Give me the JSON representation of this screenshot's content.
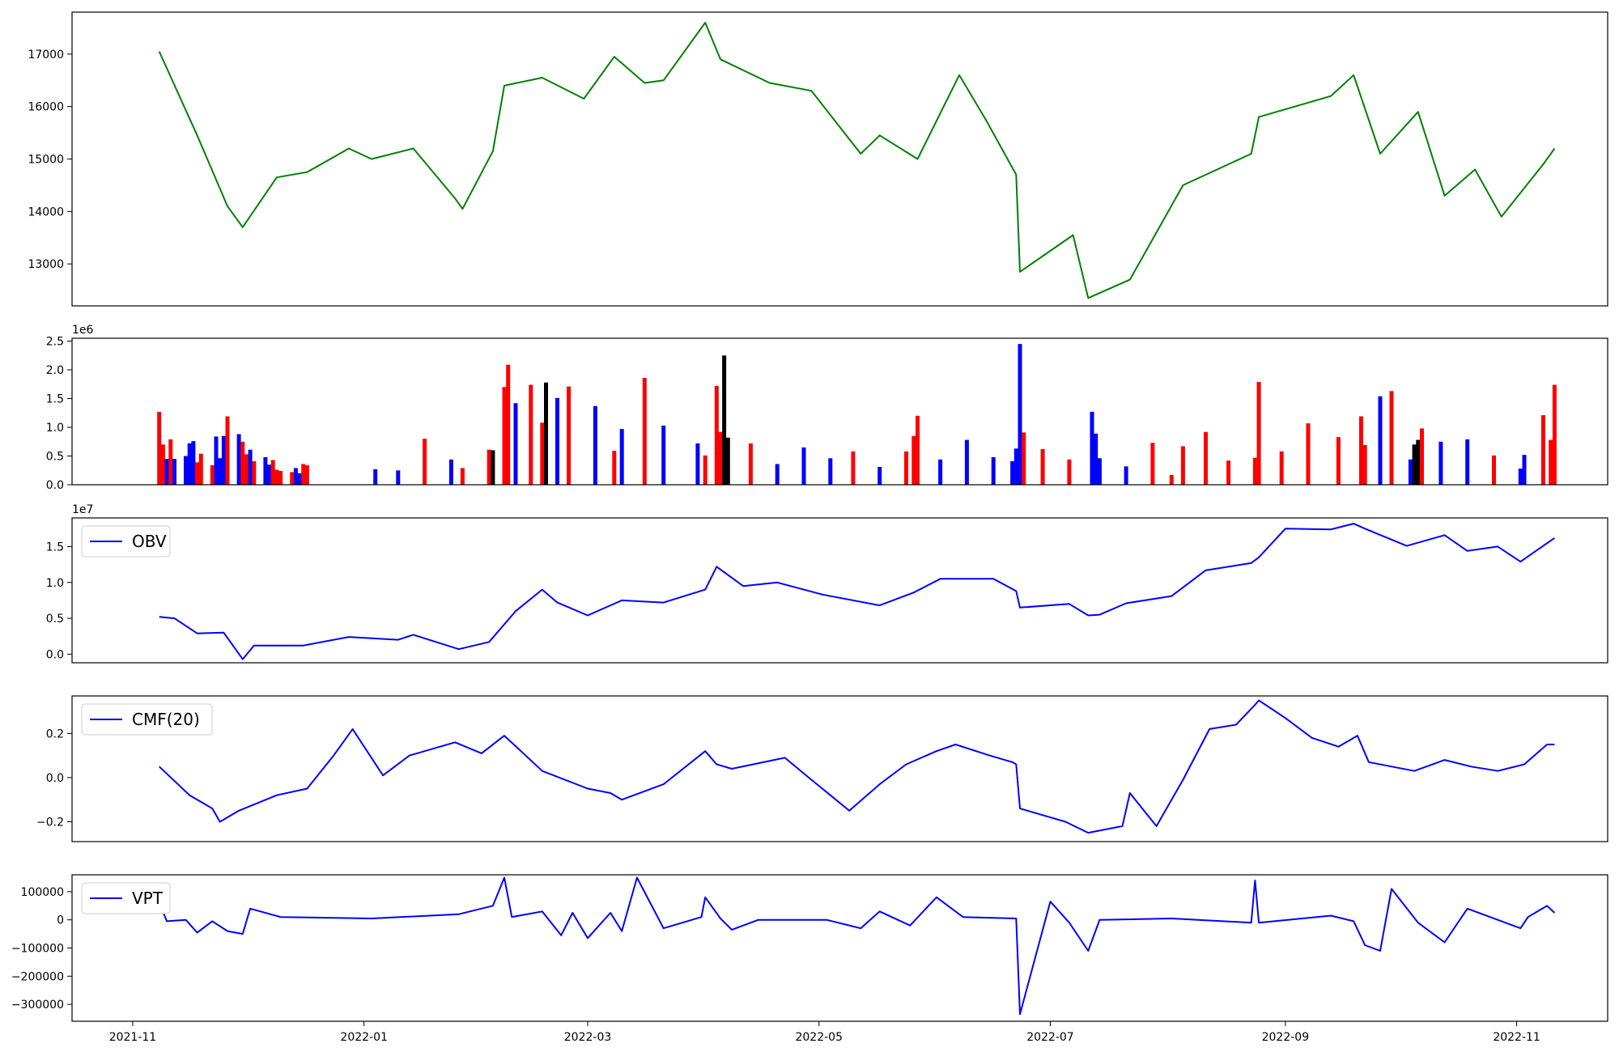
{
  "chart_data": [
    {
      "type": "line",
      "title": "",
      "ylabel": "",
      "color": "#008000",
      "ylim": [
        12200,
        17800
      ],
      "yticks": [
        13000,
        14000,
        15000,
        16000,
        17000
      ],
      "ytick_labels": [
        "13000",
        "14000",
        "15000",
        "16000",
        "17000"
      ],
      "show_xticklabels": false,
      "x": [
        "2021-11-08",
        "2021-11-18",
        "2021-11-26",
        "2021-11-30",
        "2021-12-09",
        "2021-12-17",
        "2021-12-28",
        "2022-01-03",
        "2022-01-14",
        "2022-01-25",
        "2022-01-27",
        "2022-02-04",
        "2022-02-07",
        "2022-02-17",
        "2022-02-28",
        "2022-03-08",
        "2022-03-16",
        "2022-03-21",
        "2022-04-01",
        "2022-04-05",
        "2022-04-18",
        "2022-04-29",
        "2022-05-12",
        "2022-05-17",
        "2022-05-27",
        "2022-06-07",
        "2022-06-14",
        "2022-06-22",
        "2022-06-23",
        "2022-07-07",
        "2022-07-11",
        "2022-07-22",
        "2022-08-05",
        "2022-08-23",
        "2022-08-25",
        "2022-09-13",
        "2022-09-19",
        "2022-09-26",
        "2022-10-06",
        "2022-10-13",
        "2022-10-21",
        "2022-10-28",
        "2022-11-08",
        "2022-11-11"
      ],
      "values": [
        17050,
        15450,
        14100,
        13700,
        14650,
        14750,
        15200,
        15000,
        15200,
        14250,
        14050,
        15150,
        16400,
        16550,
        16150,
        16950,
        16450,
        16500,
        17600,
        16900,
        16450,
        16300,
        15100,
        15450,
        15000,
        16600,
        15750,
        14700,
        12850,
        13550,
        12350,
        12700,
        14500,
        15100,
        15800,
        16200,
        16600,
        15100,
        15900,
        14300,
        14800,
        13900,
        14900,
        15200
      ]
    },
    {
      "type": "bar",
      "title": "",
      "exponent_label": "1e6",
      "ylim": [
        0,
        2.55
      ],
      "yticks": [
        0.0,
        0.5,
        1.0,
        1.5,
        2.0,
        2.5
      ],
      "ytick_labels": [
        "0.0",
        "0.5",
        "1.0",
        "1.5",
        "2.0",
        "2.5"
      ],
      "show_xticklabels": false,
      "colors": {
        "up": "#0000ff",
        "down": "#ff0000",
        "flat": "#000000"
      },
      "x": [
        "2021-11-08",
        "2021-11-09",
        "2021-11-10",
        "2021-11-11",
        "2021-11-12",
        "2021-11-15",
        "2021-11-16",
        "2021-11-17",
        "2021-11-18",
        "2021-11-19",
        "2021-11-22",
        "2021-11-23",
        "2021-11-24",
        "2021-11-25",
        "2021-11-26",
        "2021-11-29",
        "2021-11-30",
        "2021-12-01",
        "2021-12-02",
        "2021-12-03",
        "2021-12-06",
        "2021-12-07",
        "2021-12-08",
        "2021-12-09",
        "2021-12-10",
        "2021-12-13",
        "2021-12-14",
        "2021-12-15",
        "2021-12-16",
        "2021-12-17",
        "2022-01-04",
        "2022-01-10",
        "2022-01-17",
        "2022-01-24",
        "2022-01-27",
        "2022-02-03",
        "2022-02-04",
        "2022-02-07",
        "2022-02-08",
        "2022-02-10",
        "2022-02-14",
        "2022-02-17",
        "2022-02-18",
        "2022-02-21",
        "2022-02-24",
        "2022-03-03",
        "2022-03-08",
        "2022-03-10",
        "2022-03-16",
        "2022-03-21",
        "2022-03-30",
        "2022-04-01",
        "2022-04-04",
        "2022-04-05",
        "2022-04-06",
        "2022-04-07",
        "2022-04-13",
        "2022-04-20",
        "2022-04-27",
        "2022-05-04",
        "2022-05-10",
        "2022-05-17",
        "2022-05-24",
        "2022-05-26",
        "2022-05-27",
        "2022-06-02",
        "2022-06-09",
        "2022-06-16",
        "2022-06-21",
        "2022-06-22",
        "2022-06-23",
        "2022-06-24",
        "2022-06-29",
        "2022-07-06",
        "2022-07-12",
        "2022-07-13",
        "2022-07-14",
        "2022-07-21",
        "2022-07-28",
        "2022-08-02",
        "2022-08-05",
        "2022-08-11",
        "2022-08-17",
        "2022-08-24",
        "2022-08-25",
        "2022-08-31",
        "2022-09-07",
        "2022-09-15",
        "2022-09-21",
        "2022-09-22",
        "2022-09-26",
        "2022-09-29",
        "2022-10-04",
        "2022-10-05",
        "2022-10-06",
        "2022-10-07",
        "2022-10-12",
        "2022-10-19",
        "2022-10-26",
        "2022-11-02",
        "2022-11-03",
        "2022-11-08",
        "2022-11-10",
        "2022-11-11"
      ],
      "values": [
        1.27,
        0.7,
        0.45,
        0.79,
        0.45,
        0.5,
        0.72,
        0.76,
        0.39,
        0.54,
        0.34,
        0.84,
        0.46,
        0.85,
        1.19,
        0.88,
        0.75,
        0.53,
        0.61,
        0.41,
        0.48,
        0.35,
        0.43,
        0.26,
        0.24,
        0.22,
        0.29,
        0.2,
        0.36,
        0.34,
        0.27,
        0.25,
        0.8,
        0.44,
        0.29,
        0.61,
        0.6,
        1.7,
        2.09,
        1.42,
        1.74,
        1.08,
        1.78,
        1.51,
        1.71,
        1.37,
        0.59,
        0.97,
        1.86,
        1.03,
        0.72,
        0.51,
        1.72,
        0.92,
        2.25,
        0.82,
        0.72,
        0.36,
        0.65,
        0.46,
        0.58,
        0.31,
        0.58,
        0.85,
        1.2,
        0.44,
        0.78,
        0.48,
        0.41,
        0.63,
        2.45,
        0.91,
        0.62,
        0.44,
        1.27,
        0.89,
        0.46,
        0.32,
        0.73,
        0.17,
        0.67,
        0.92,
        0.42,
        0.47,
        1.79,
        0.58,
        1.07,
        0.83,
        1.19,
        0.69,
        1.54,
        1.63,
        0.44,
        0.7,
        0.78,
        0.98,
        0.75,
        0.79,
        0.51,
        0.28,
        0.52,
        1.21,
        0.78,
        1.74
      ],
      "directions": [
        "down",
        "down",
        "up",
        "down",
        "up",
        "up",
        "up",
        "up",
        "down",
        "down",
        "down",
        "up",
        "up",
        "up",
        "down",
        "up",
        "down",
        "down",
        "up",
        "down",
        "up",
        "up",
        "down",
        "down",
        "down",
        "down",
        "up",
        "up",
        "down",
        "down",
        "up",
        "up",
        "down",
        "up",
        "down",
        "down",
        "flat",
        "down",
        "down",
        "up",
        "down",
        "down",
        "flat",
        "up",
        "down",
        "up",
        "down",
        "up",
        "down",
        "up",
        "up",
        "down",
        "down",
        "down",
        "flat",
        "flat",
        "down",
        "up",
        "up",
        "up",
        "down",
        "up",
        "down",
        "down",
        "down",
        "up",
        "up",
        "up",
        "up",
        "up",
        "up",
        "down",
        "down",
        "down",
        "up",
        "up",
        "up",
        "up",
        "down",
        "down",
        "down",
        "down",
        "down",
        "down",
        "down",
        "down",
        "down",
        "down",
        "down",
        "down",
        "up",
        "down",
        "up",
        "flat",
        "flat",
        "down",
        "up",
        "up",
        "down",
        "up",
        "up",
        "down",
        "down",
        "down"
      ]
    },
    {
      "type": "line",
      "title": "",
      "exponent_label": "1e7",
      "color": "#0000ff",
      "legend": "upper-left",
      "series_name": "OBV",
      "ylim": [
        -0.12,
        1.9
      ],
      "yticks": [
        0.0,
        0.5,
        1.0,
        1.5
      ],
      "ytick_labels": [
        "0.0",
        "0.5",
        "1.0",
        "1.5"
      ],
      "show_xticklabels": false,
      "x": [
        "2021-11-08",
        "2021-11-12",
        "2021-11-18",
        "2021-11-25",
        "2021-11-30",
        "2021-12-03",
        "2021-12-16",
        "2021-12-28",
        "2022-01-10",
        "2022-01-14",
        "2022-01-26",
        "2022-02-03",
        "2022-02-10",
        "2022-02-17",
        "2022-02-21",
        "2022-03-01",
        "2022-03-10",
        "2022-03-21",
        "2022-04-01",
        "2022-04-04",
        "2022-04-11",
        "2022-04-20",
        "2022-05-02",
        "2022-05-17",
        "2022-05-26",
        "2022-06-02",
        "2022-06-16",
        "2022-06-22",
        "2022-06-23",
        "2022-07-06",
        "2022-07-11",
        "2022-07-14",
        "2022-07-21",
        "2022-08-02",
        "2022-08-11",
        "2022-08-23",
        "2022-08-25",
        "2022-09-01",
        "2022-09-13",
        "2022-09-19",
        "2022-09-22",
        "2022-10-03",
        "2022-10-13",
        "2022-10-19",
        "2022-10-27",
        "2022-11-02",
        "2022-11-11"
      ],
      "values": [
        0.52,
        0.5,
        0.29,
        0.3,
        -0.07,
        0.12,
        0.12,
        0.24,
        0.2,
        0.27,
        0.07,
        0.17,
        0.6,
        0.9,
        0.72,
        0.54,
        0.75,
        0.72,
        0.9,
        1.22,
        0.95,
        1.0,
        0.83,
        0.68,
        0.86,
        1.05,
        1.05,
        0.88,
        0.65,
        0.7,
        0.54,
        0.55,
        0.71,
        0.81,
        1.17,
        1.27,
        1.35,
        1.75,
        1.74,
        1.82,
        1.75,
        1.51,
        1.66,
        1.44,
        1.5,
        1.29,
        1.62
      ]
    },
    {
      "type": "line",
      "title": "",
      "color": "#0000ff",
      "legend": "upper-left",
      "series_name": "CMF(20)",
      "ylim": [
        -0.29,
        0.37
      ],
      "yticks": [
        -0.2,
        0.0,
        0.2
      ],
      "ytick_labels": [
        "−0.2",
        "0.0",
        "0.2"
      ],
      "show_xticklabels": false,
      "x": [
        "2021-11-08",
        "2021-11-16",
        "2021-11-22",
        "2021-11-24",
        "2021-11-29",
        "2021-12-09",
        "2021-12-17",
        "2021-12-24",
        "2021-12-29",
        "2022-01-06",
        "2022-01-13",
        "2022-01-25",
        "2022-02-01",
        "2022-02-07",
        "2022-02-17",
        "2022-03-01",
        "2022-03-07",
        "2022-03-10",
        "2022-03-21",
        "2022-04-01",
        "2022-04-04",
        "2022-04-08",
        "2022-04-22",
        "2022-04-29",
        "2022-05-09",
        "2022-05-17",
        "2022-05-24",
        "2022-06-01",
        "2022-06-06",
        "2022-06-15",
        "2022-06-21",
        "2022-06-22",
        "2022-06-23",
        "2022-07-05",
        "2022-07-11",
        "2022-07-20",
        "2022-07-22",
        "2022-07-29",
        "2022-08-05",
        "2022-08-12",
        "2022-08-19",
        "2022-08-24",
        "2022-08-25",
        "2022-09-01",
        "2022-09-08",
        "2022-09-15",
        "2022-09-20",
        "2022-09-23",
        "2022-10-05",
        "2022-10-13",
        "2022-10-20",
        "2022-10-27",
        "2022-11-03",
        "2022-11-09",
        "2022-11-11"
      ],
      "values": [
        0.05,
        -0.08,
        -0.14,
        -0.2,
        -0.15,
        -0.08,
        -0.05,
        0.1,
        0.22,
        0.01,
        0.1,
        0.16,
        0.11,
        0.19,
        0.03,
        -0.05,
        -0.07,
        -0.1,
        -0.03,
        0.12,
        0.06,
        0.04,
        0.09,
        -0.01,
        -0.15,
        -0.03,
        0.06,
        0.12,
        0.15,
        0.1,
        0.07,
        0.06,
        -0.14,
        -0.2,
        -0.25,
        -0.22,
        -0.07,
        -0.22,
        -0.01,
        0.22,
        0.24,
        0.33,
        0.35,
        0.27,
        0.18,
        0.14,
        0.19,
        0.07,
        0.03,
        0.08,
        0.05,
        0.03,
        0.06,
        0.15,
        0.15
      ]
    },
    {
      "type": "line",
      "title": "",
      "color": "#0000ff",
      "legend": "upper-left",
      "series_name": "VPT",
      "ylim": [
        -360000,
        160000
      ],
      "yticks": [
        -300000,
        -200000,
        -100000,
        0,
        100000
      ],
      "ytick_labels": [
        "−300000",
        "−200000",
        "−100000",
        "0",
        "100000"
      ],
      "xticks": [
        "2021-11-01",
        "2022-01-01",
        "2022-03-01",
        "2022-05-01",
        "2022-07-01",
        "2022-09-01",
        "2022-11-01"
      ],
      "xtick_labels": [
        "2021-11",
        "2022-01",
        "2022-03",
        "2022-05",
        "2022-07",
        "2022-09",
        "2022-11"
      ],
      "x": [
        "2021-11-08",
        "2021-11-10",
        "2021-11-15",
        "2021-11-18",
        "2021-11-22",
        "2021-11-26",
        "2021-11-30",
        "2021-12-02",
        "2021-12-10",
        "2022-01-03",
        "2022-01-26",
        "2022-02-04",
        "2022-02-07",
        "2022-02-09",
        "2022-02-17",
        "2022-02-22",
        "2022-02-25",
        "2022-03-01",
        "2022-03-07",
        "2022-03-10",
        "2022-03-14",
        "2022-03-21",
        "2022-03-31",
        "2022-04-01",
        "2022-04-05",
        "2022-04-08",
        "2022-04-15",
        "2022-05-03",
        "2022-05-12",
        "2022-05-17",
        "2022-05-25",
        "2022-06-01",
        "2022-06-08",
        "2022-06-22",
        "2022-06-23",
        "2022-07-01",
        "2022-07-06",
        "2022-07-11",
        "2022-07-14",
        "2022-08-02",
        "2022-08-23",
        "2022-08-24",
        "2022-08-25",
        "2022-09-13",
        "2022-09-19",
        "2022-09-22",
        "2022-09-26",
        "2022-09-29",
        "2022-10-06",
        "2022-10-13",
        "2022-10-19",
        "2022-11-02",
        "2022-11-04",
        "2022-11-09",
        "2022-11-11"
      ],
      "values": [
        60000,
        -5000,
        0,
        -45000,
        -5000,
        -40000,
        -50000,
        40000,
        10000,
        5000,
        20000,
        50000,
        150000,
        10000,
        30000,
        -55000,
        25000,
        -65000,
        25000,
        -40000,
        150000,
        -30000,
        10000,
        80000,
        5000,
        -35000,
        0,
        0,
        -30000,
        30000,
        -20000,
        80000,
        10000,
        5000,
        -335000,
        65000,
        -10000,
        -110000,
        0,
        5000,
        -10000,
        140000,
        -10000,
        15000,
        -5000,
        -90000,
        -110000,
        110000,
        -10000,
        -80000,
        40000,
        -30000,
        10000,
        50000,
        25000
      ]
    }
  ]
}
